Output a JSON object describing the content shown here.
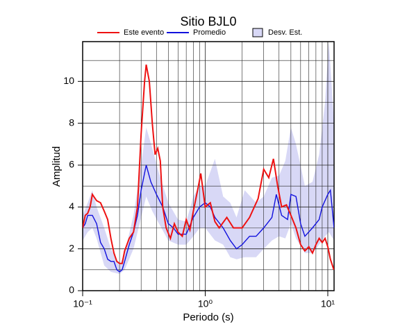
{
  "chart_data": {
    "type": "line",
    "title": "Sitio BJL0",
    "xlabel": "Periodo (s)",
    "ylabel": "Amplitud",
    "log_x": true,
    "grid": true,
    "xlim": [
      0.1,
      11.25
    ],
    "ylim": [
      0,
      11.9
    ],
    "xticks": [
      {
        "value": 0.1,
        "label": "10⁻¹"
      },
      {
        "value": 1,
        "label": "10⁰"
      },
      {
        "value": 10,
        "label": "10¹"
      }
    ],
    "xminor": [
      0.2,
      0.3,
      0.4,
      0.5,
      0.6,
      0.7,
      0.8,
      0.9,
      2,
      3,
      4,
      5,
      6,
      7,
      8,
      9
    ],
    "yticks": [
      0,
      2,
      4,
      6,
      8,
      10
    ],
    "yminor": [
      1,
      3,
      5,
      7,
      9,
      11
    ],
    "series": [
      {
        "name": "Este evento",
        "color": "#ee1111",
        "x": [
          0.1,
          0.105,
          0.11,
          0.115,
          0.12,
          0.13,
          0.14,
          0.15,
          0.16,
          0.17,
          0.18,
          0.19,
          0.2,
          0.21,
          0.22,
          0.24,
          0.26,
          0.28,
          0.3,
          0.32,
          0.33,
          0.35,
          0.37,
          0.39,
          0.41,
          0.43,
          0.45,
          0.48,
          0.52,
          0.56,
          0.6,
          0.65,
          0.7,
          0.75,
          0.8,
          0.88,
          0.92,
          1.0,
          1.1,
          1.2,
          1.3,
          1.5,
          1.7,
          2.0,
          2.3,
          2.7,
          3.0,
          3.3,
          3.6,
          3.9,
          4.2,
          4.6,
          5.0,
          5.5,
          6.0,
          6.5,
          7.0,
          7.5,
          8.0,
          8.5,
          9.0,
          9.5,
          10.0,
          10.5,
          11.2
        ],
        "values": [
          3.0,
          3.6,
          3.7,
          4.0,
          4.6,
          4.3,
          4.2,
          3.8,
          3.4,
          2.5,
          1.8,
          1.4,
          1.3,
          1.3,
          1.9,
          2.5,
          2.8,
          4.0,
          7.5,
          10.0,
          10.8,
          10.0,
          8.0,
          6.5,
          6.8,
          6.2,
          4.0,
          3.0,
          2.5,
          3.2,
          2.8,
          2.6,
          3.4,
          2.9,
          3.8,
          5.0,
          5.6,
          4.0,
          4.2,
          3.3,
          3.0,
          3.5,
          3.0,
          3.0,
          3.5,
          4.4,
          5.8,
          5.4,
          6.3,
          5.0,
          4.0,
          4.1,
          3.6,
          3.0,
          2.2,
          1.9,
          2.1,
          1.8,
          2.2,
          2.5,
          2.3,
          2.5,
          2.1,
          1.5,
          1.0
        ]
      },
      {
        "name": "Promedio",
        "color": "#1111dd",
        "x": [
          0.1,
          0.105,
          0.11,
          0.12,
          0.13,
          0.14,
          0.15,
          0.16,
          0.17,
          0.18,
          0.19,
          0.2,
          0.21,
          0.22,
          0.24,
          0.26,
          0.28,
          0.3,
          0.33,
          0.36,
          0.4,
          0.45,
          0.5,
          0.55,
          0.6,
          0.7,
          0.8,
          0.9,
          1.0,
          1.1,
          1.2,
          1.4,
          1.6,
          1.8,
          2.0,
          2.3,
          2.6,
          3.0,
          3.5,
          3.8,
          4.2,
          4.7,
          5.0,
          5.5,
          6.0,
          6.5,
          7.5,
          8.5,
          9.0,
          10.0,
          10.5,
          11.25
        ],
        "values": [
          3.0,
          3.2,
          3.6,
          3.6,
          3.2,
          2.3,
          2.0,
          1.5,
          1.4,
          1.4,
          1.0,
          0.9,
          1.0,
          1.4,
          2.2,
          2.8,
          3.6,
          4.8,
          6.0,
          5.2,
          4.6,
          4.0,
          3.2,
          3.0,
          2.7,
          2.7,
          3.5,
          4.0,
          4.2,
          4.0,
          3.5,
          3.0,
          2.4,
          2.0,
          2.2,
          2.6,
          2.6,
          3.0,
          3.5,
          4.6,
          3.6,
          3.4,
          4.6,
          4.5,
          3.2,
          2.6,
          3.0,
          3.4,
          4.0,
          4.6,
          4.8,
          3.0
        ]
      },
      {
        "name": "Desv. Est.",
        "color": "#d8d8f6",
        "x": [
          0.1,
          0.11,
          0.12,
          0.13,
          0.15,
          0.17,
          0.2,
          0.22,
          0.26,
          0.3,
          0.33,
          0.37,
          0.42,
          0.5,
          0.6,
          0.7,
          0.8,
          0.9,
          1.0,
          1.2,
          1.4,
          1.6,
          1.8,
          2.1,
          2.6,
          3.0,
          3.5,
          4.0,
          4.5,
          5.0,
          5.5,
          6.5,
          7.5,
          8.5,
          9.5,
          10.2,
          11.25
        ],
        "lower": [
          2.4,
          2.8,
          3.0,
          2.5,
          1.2,
          0.9,
          0.8,
          1.0,
          2.0,
          3.5,
          4.5,
          3.8,
          3.2,
          2.4,
          2.2,
          2.2,
          2.6,
          3.0,
          3.0,
          2.4,
          2.2,
          1.6,
          1.5,
          1.6,
          1.6,
          2.0,
          2.4,
          2.6,
          2.5,
          3.2,
          2.5,
          1.8,
          1.8,
          2.2,
          2.6,
          2.8,
          2.4
        ],
        "upper": [
          3.6,
          4.2,
          4.8,
          4.0,
          3.0,
          2.0,
          1.2,
          1.8,
          3.6,
          6.0,
          7.8,
          6.8,
          5.6,
          4.2,
          3.4,
          3.3,
          4.5,
          5.0,
          5.0,
          6.3,
          4.5,
          4.2,
          3.5,
          4.8,
          4.2,
          4.5,
          5.4,
          5.5,
          6.2,
          7.8,
          7.0,
          5.0,
          5.2,
          6.5,
          9.0,
          11.9,
          8.0
        ]
      }
    ]
  }
}
